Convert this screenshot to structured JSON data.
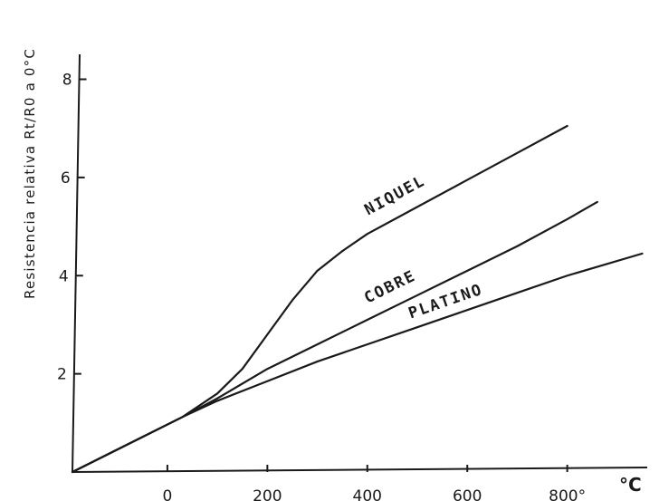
{
  "chart_data": {
    "type": "line",
    "ylabel": "Resistencia relativa  Rt/R0 a 0°C",
    "xunit": "°C",
    "xlim": [
      -190,
      960
    ],
    "ylim": [
      0,
      8.6
    ],
    "xticks": [
      {
        "value": 0,
        "label": "0"
      },
      {
        "value": 200,
        "label": "200"
      },
      {
        "value": 400,
        "label": "400"
      },
      {
        "value": 600,
        "label": "600"
      },
      {
        "value": 800,
        "label": "800°"
      }
    ],
    "yticks": [
      {
        "value": 2,
        "label": "2"
      },
      {
        "value": 4,
        "label": "4"
      },
      {
        "value": 6,
        "label": "6"
      },
      {
        "value": 8,
        "label": "8"
      }
    ],
    "grid": false,
    "series": [
      {
        "name": "NIQUEL",
        "points": [
          [
            -190,
            0
          ],
          [
            30,
            1.12
          ],
          [
            100,
            1.6
          ],
          [
            150,
            2.1
          ],
          [
            200,
            2.8
          ],
          [
            250,
            3.5
          ],
          [
            300,
            4.1
          ],
          [
            350,
            4.5
          ],
          [
            400,
            4.85
          ],
          [
            500,
            5.4
          ],
          [
            600,
            5.95
          ],
          [
            700,
            6.5
          ],
          [
            800,
            7.05
          ]
        ]
      },
      {
        "name": "COBRE",
        "points": [
          [
            -190,
            0
          ],
          [
            30,
            1.12
          ],
          [
            100,
            1.5
          ],
          [
            200,
            2.1
          ],
          [
            300,
            2.6
          ],
          [
            400,
            3.1
          ],
          [
            500,
            3.6
          ],
          [
            600,
            4.1
          ],
          [
            700,
            4.6
          ],
          [
            800,
            5.15
          ],
          [
            860,
            5.5
          ]
        ]
      },
      {
        "name": "PLATINO",
        "points": [
          [
            -190,
            0
          ],
          [
            30,
            1.12
          ],
          [
            100,
            1.45
          ],
          [
            200,
            1.85
          ],
          [
            300,
            2.25
          ],
          [
            400,
            2.6
          ],
          [
            500,
            2.95
          ],
          [
            600,
            3.3
          ],
          [
            700,
            3.65
          ],
          [
            800,
            4.0
          ],
          [
            950,
            4.45
          ]
        ]
      }
    ]
  }
}
